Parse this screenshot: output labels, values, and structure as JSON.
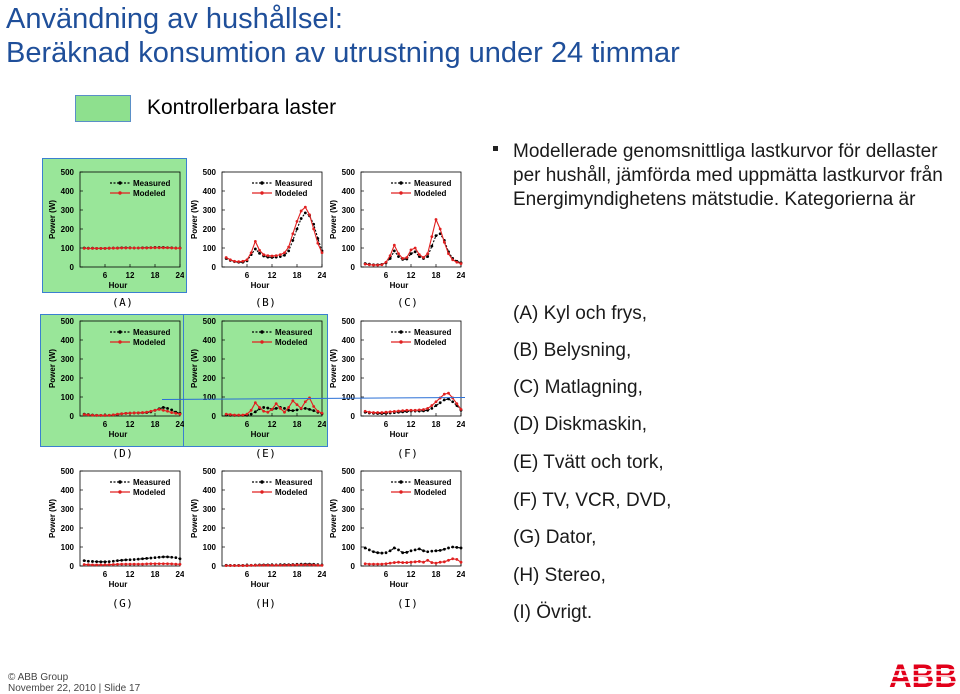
{
  "title_line1": "Användning av hushållsel:",
  "title_line2": "Beräknad konsumtion av utrustning under 24 timmar",
  "legend_label": "Kontrollerbara laster",
  "description": "Modellerade genomsnittliga lastkurvor för dellaster per hushåll, jämförda med uppmätta lastkurvor från Energimyndighetens mätstudie. Kategorierna är",
  "categories": [
    "(A) Kyl och frys,",
    "(B) Belysning,",
    "(C) Matlagning,",
    "(D) Diskmaskin,",
    "(E) Tvätt och tork,",
    "(F) TV, VCR, DVD,",
    "(G) Dator,",
    "(H) Stereo,",
    "(I) Övrigt."
  ],
  "footer": {
    "copyright": "© ABB Group",
    "date_slide": "November 22, 2010 | Slide 17"
  },
  "logo_text": "ABB",
  "colors": {
    "title": "#1f4f9a",
    "highlight": "#99e699",
    "measured": "#000000",
    "modeled": "#e02020",
    "logo": "#e2001a"
  },
  "chart_data": [
    {
      "panel": "(A)",
      "type": "line",
      "highlighted": true,
      "xlabel": "Hour",
      "ylabel": "Power (W)",
      "xticks": [
        "6",
        "12",
        "18",
        "24"
      ],
      "yticks": [
        "0",
        "100",
        "200",
        "300",
        "400",
        "500"
      ],
      "ylim": [
        0,
        500
      ],
      "series": [
        {
          "name": "Measured",
          "values": [
            100,
            99,
            99,
            98,
            98,
            98,
            99,
            100,
            100,
            101,
            101,
            101,
            100,
            100,
            101,
            101,
            102,
            103,
            103,
            103,
            102,
            101,
            100,
            100
          ]
        },
        {
          "name": "Modeled",
          "values": [
            98,
            98,
            98,
            98,
            98,
            98,
            99,
            99,
            99,
            100,
            100,
            100,
            100,
            100,
            100,
            100,
            101,
            101,
            101,
            101,
            101,
            100,
            99,
            99
          ]
        }
      ]
    },
    {
      "panel": "(B)",
      "type": "line",
      "highlighted": false,
      "xlabel": "Hour",
      "ylabel": "Power (W)",
      "xticks": [
        "6",
        "12",
        "18",
        "24"
      ],
      "yticks": [
        "0",
        "100",
        "200",
        "300",
        "400",
        "500"
      ],
      "ylim": [
        0,
        500
      ],
      "series": [
        {
          "name": "Measured",
          "values": [
            45,
            35,
            28,
            25,
            25,
            32,
            65,
            95,
            72,
            58,
            52,
            50,
            52,
            55,
            62,
            85,
            140,
            200,
            255,
            285,
            270,
            225,
            150,
            85
          ]
        },
        {
          "name": "Modeled",
          "values": [
            50,
            38,
            30,
            28,
            30,
            38,
            75,
            135,
            88,
            65,
            60,
            58,
            60,
            65,
            75,
            105,
            175,
            240,
            295,
            315,
            275,
            200,
            125,
            75
          ]
        }
      ]
    },
    {
      "panel": "(C)",
      "type": "line",
      "highlighted": false,
      "xlabel": "Hour",
      "ylabel": "Power (W)",
      "xticks": [
        "6",
        "12",
        "18",
        "24"
      ],
      "yticks": [
        "0",
        "100",
        "200",
        "300",
        "400",
        "500"
      ],
      "ylim": [
        0,
        500
      ],
      "series": [
        {
          "name": "Measured",
          "values": [
            18,
            15,
            12,
            12,
            14,
            22,
            45,
            85,
            55,
            40,
            42,
            70,
            80,
            55,
            45,
            55,
            110,
            165,
            175,
            140,
            80,
            45,
            30,
            22
          ]
        },
        {
          "name": "Modeled",
          "values": [
            15,
            12,
            10,
            10,
            12,
            25,
            60,
            115,
            70,
            45,
            50,
            90,
            100,
            65,
            50,
            70,
            160,
            250,
            200,
            130,
            70,
            38,
            25,
            18
          ]
        }
      ]
    },
    {
      "panel": "(D)",
      "type": "line",
      "highlighted": true,
      "xlabel": "Hour",
      "ylabel": "Power (W)",
      "xticks": [
        "6",
        "12",
        "18",
        "24"
      ],
      "yticks": [
        "0",
        "100",
        "200",
        "300",
        "400",
        "500"
      ],
      "ylim": [
        0,
        500
      ],
      "series": [
        {
          "name": "Measured",
          "values": [
            10,
            8,
            5,
            4,
            3,
            3,
            4,
            6,
            8,
            12,
            14,
            15,
            16,
            16,
            17,
            18,
            22,
            30,
            38,
            45,
            40,
            32,
            20,
            14
          ]
        },
        {
          "name": "Modeled",
          "values": [
            8,
            6,
            4,
            3,
            3,
            3,
            4,
            6,
            10,
            12,
            14,
            15,
            16,
            17,
            18,
            20,
            25,
            30,
            35,
            30,
            25,
            18,
            14,
            10
          ]
        }
      ]
    },
    {
      "panel": "(E)",
      "type": "line",
      "highlighted": true,
      "xlabel": "Hour",
      "ylabel": "Power (W)",
      "xticks": [
        "6",
        "12",
        "18",
        "24"
      ],
      "yticks": [
        "0",
        "100",
        "200",
        "300",
        "400",
        "500"
      ],
      "ylim": [
        0,
        500
      ],
      "series": [
        {
          "name": "Measured",
          "values": [
            5,
            4,
            3,
            3,
            3,
            4,
            10,
            22,
            38,
            45,
            42,
            35,
            40,
            45,
            40,
            30,
            28,
            32,
            38,
            40,
            35,
            28,
            20,
            12
          ]
        },
        {
          "name": "Modeled",
          "values": [
            10,
            8,
            5,
            5,
            5,
            10,
            30,
            70,
            45,
            25,
            20,
            35,
            65,
            40,
            20,
            45,
            80,
            60,
            40,
            75,
            95,
            50,
            25,
            15
          ]
        }
      ]
    },
    {
      "panel": "(F)",
      "type": "line",
      "highlighted": false,
      "xlabel": "Hour",
      "ylabel": "Power (W)",
      "xticks": [
        "6",
        "12",
        "18",
        "24"
      ],
      "yticks": [
        "0",
        "100",
        "200",
        "300",
        "400",
        "500"
      ],
      "ylim": [
        0,
        500
      ],
      "series": [
        {
          "name": "Measured",
          "values": [
            20,
            16,
            14,
            13,
            13,
            14,
            16,
            18,
            20,
            22,
            24,
            25,
            26,
            26,
            27,
            30,
            40,
            55,
            70,
            85,
            90,
            75,
            55,
            30
          ]
        },
        {
          "name": "Modeled",
          "values": [
            25,
            20,
            18,
            18,
            18,
            20,
            22,
            24,
            26,
            28,
            30,
            30,
            30,
            32,
            34,
            40,
            55,
            75,
            95,
            115,
            120,
            95,
            65,
            35
          ]
        }
      ]
    },
    {
      "panel": "(G)",
      "type": "line",
      "highlighted": false,
      "xlabel": "Hour",
      "ylabel": "Power (W)",
      "xticks": [
        "6",
        "12",
        "18",
        "24"
      ],
      "yticks": [
        "0",
        "100",
        "200",
        "300",
        "400",
        "500"
      ],
      "ylim": [
        0,
        500
      ],
      "series": [
        {
          "name": "Measured",
          "values": [
            28,
            25,
            24,
            23,
            22,
            22,
            23,
            25,
            28,
            30,
            32,
            33,
            34,
            36,
            38,
            40,
            42,
            44,
            46,
            48,
            48,
            46,
            44,
            38
          ]
        },
        {
          "name": "Modeled",
          "values": [
            8,
            7,
            6,
            6,
            6,
            6,
            7,
            8,
            9,
            10,
            10,
            10,
            10,
            10,
            10,
            11,
            12,
            12,
            12,
            12,
            12,
            11,
            10,
            9
          ]
        }
      ]
    },
    {
      "panel": "(H)",
      "type": "line",
      "highlighted": false,
      "xlabel": "Hour",
      "ylabel": "Power (W)",
      "xticks": [
        "6",
        "12",
        "18",
        "24"
      ],
      "yticks": [
        "0",
        "100",
        "200",
        "300",
        "400",
        "500"
      ],
      "ylim": [
        0,
        500
      ],
      "series": [
        {
          "name": "Measured",
          "values": [
            4,
            3,
            3,
            3,
            3,
            3,
            4,
            5,
            6,
            6,
            6,
            6,
            6,
            7,
            7,
            7,
            8,
            9,
            10,
            10,
            10,
            9,
            7,
            5
          ]
        },
        {
          "name": "Modeled",
          "values": [
            2,
            2,
            2,
            2,
            2,
            2,
            3,
            3,
            4,
            4,
            4,
            4,
            4,
            4,
            4,
            5,
            5,
            6,
            6,
            6,
            6,
            5,
            4,
            3
          ]
        }
      ]
    },
    {
      "panel": "(I)",
      "type": "line",
      "highlighted": false,
      "xlabel": "Hour",
      "ylabel": "Power (W)",
      "xticks": [
        "6",
        "12",
        "18",
        "24"
      ],
      "yticks": [
        "0",
        "100",
        "200",
        "300",
        "400",
        "500"
      ],
      "ylim": [
        0,
        500
      ],
      "series": [
        {
          "name": "Measured",
          "values": [
            95,
            85,
            75,
            70,
            68,
            70,
            80,
            95,
            85,
            70,
            72,
            80,
            85,
            90,
            80,
            75,
            78,
            80,
            82,
            88,
            95,
            100,
            98,
            95
          ]
        },
        {
          "name": "Modeled",
          "values": [
            12,
            10,
            10,
            10,
            10,
            12,
            15,
            18,
            20,
            18,
            18,
            20,
            22,
            24,
            20,
            30,
            18,
            15,
            20,
            22,
            30,
            38,
            35,
            20
          ]
        }
      ]
    }
  ]
}
